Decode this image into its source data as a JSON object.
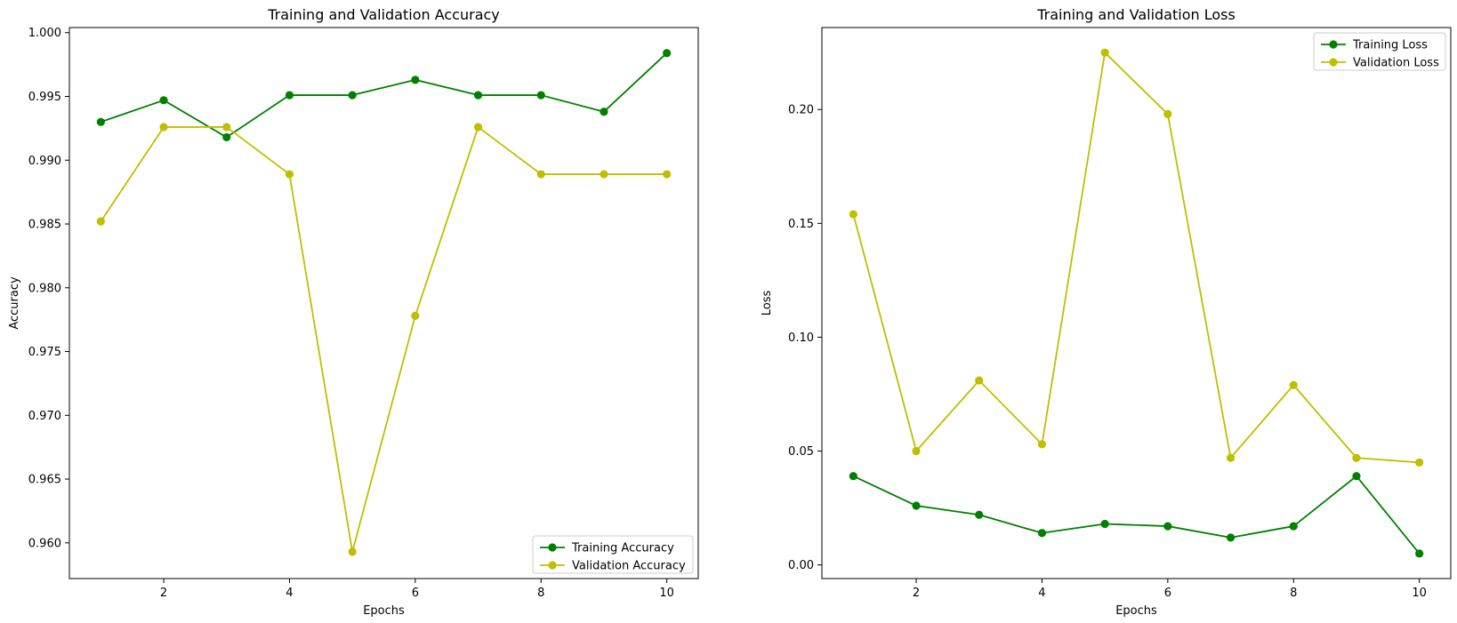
{
  "chart_data": [
    {
      "type": "line",
      "title": "Training and Validation Accuracy",
      "xlabel": "Epochs",
      "ylabel": "Accuracy",
      "xlim": [
        0.5,
        10.5
      ],
      "ylim": [
        0.9572,
        1.0004
      ],
      "xticks": [
        2,
        4,
        6,
        8,
        10
      ],
      "yticks": [
        0.96,
        0.965,
        0.97,
        0.975,
        0.98,
        0.985,
        0.99,
        0.995,
        1.0
      ],
      "ytick_labels": [
        "0.960",
        "0.965",
        "0.970",
        "0.975",
        "0.980",
        "0.985",
        "0.990",
        "0.995",
        "1.000"
      ],
      "x": [
        1,
        2,
        3,
        4,
        5,
        6,
        7,
        8,
        9,
        10
      ],
      "legend_position": "bottom-right",
      "series": [
        {
          "name": "Training Accuracy",
          "color": "#008000",
          "values": [
            0.993,
            0.9947,
            0.9918,
            0.9951,
            0.9951,
            0.9963,
            0.9951,
            0.9951,
            0.9938,
            0.9984
          ]
        },
        {
          "name": "Validation Accuracy",
          "color": "#bfbf00",
          "values": [
            0.9852,
            0.9926,
            0.9926,
            0.9889,
            0.9593,
            0.9778,
            0.9926,
            0.9889,
            0.9889,
            0.9889
          ]
        }
      ]
    },
    {
      "type": "line",
      "title": "Training and Validation Loss",
      "xlabel": "Epochs",
      "ylabel": "Loss",
      "xlim": [
        0.5,
        10.5
      ],
      "ylim": [
        -0.006,
        0.236
      ],
      "xticks": [
        2,
        4,
        6,
        8,
        10
      ],
      "yticks": [
        0.0,
        0.05,
        0.1,
        0.15,
        0.2
      ],
      "ytick_labels": [
        "0.00",
        "0.05",
        "0.10",
        "0.15",
        "0.20"
      ],
      "x": [
        1,
        2,
        3,
        4,
        5,
        6,
        7,
        8,
        9,
        10
      ],
      "legend_position": "top-right",
      "series": [
        {
          "name": "Training Loss",
          "color": "#008000",
          "values": [
            0.039,
            0.026,
            0.022,
            0.014,
            0.018,
            0.017,
            0.012,
            0.017,
            0.039,
            0.005
          ]
        },
        {
          "name": "Validation Loss",
          "color": "#bfbf00",
          "values": [
            0.154,
            0.05,
            0.081,
            0.053,
            0.225,
            0.198,
            0.047,
            0.079,
            0.047,
            0.045
          ]
        }
      ]
    }
  ]
}
